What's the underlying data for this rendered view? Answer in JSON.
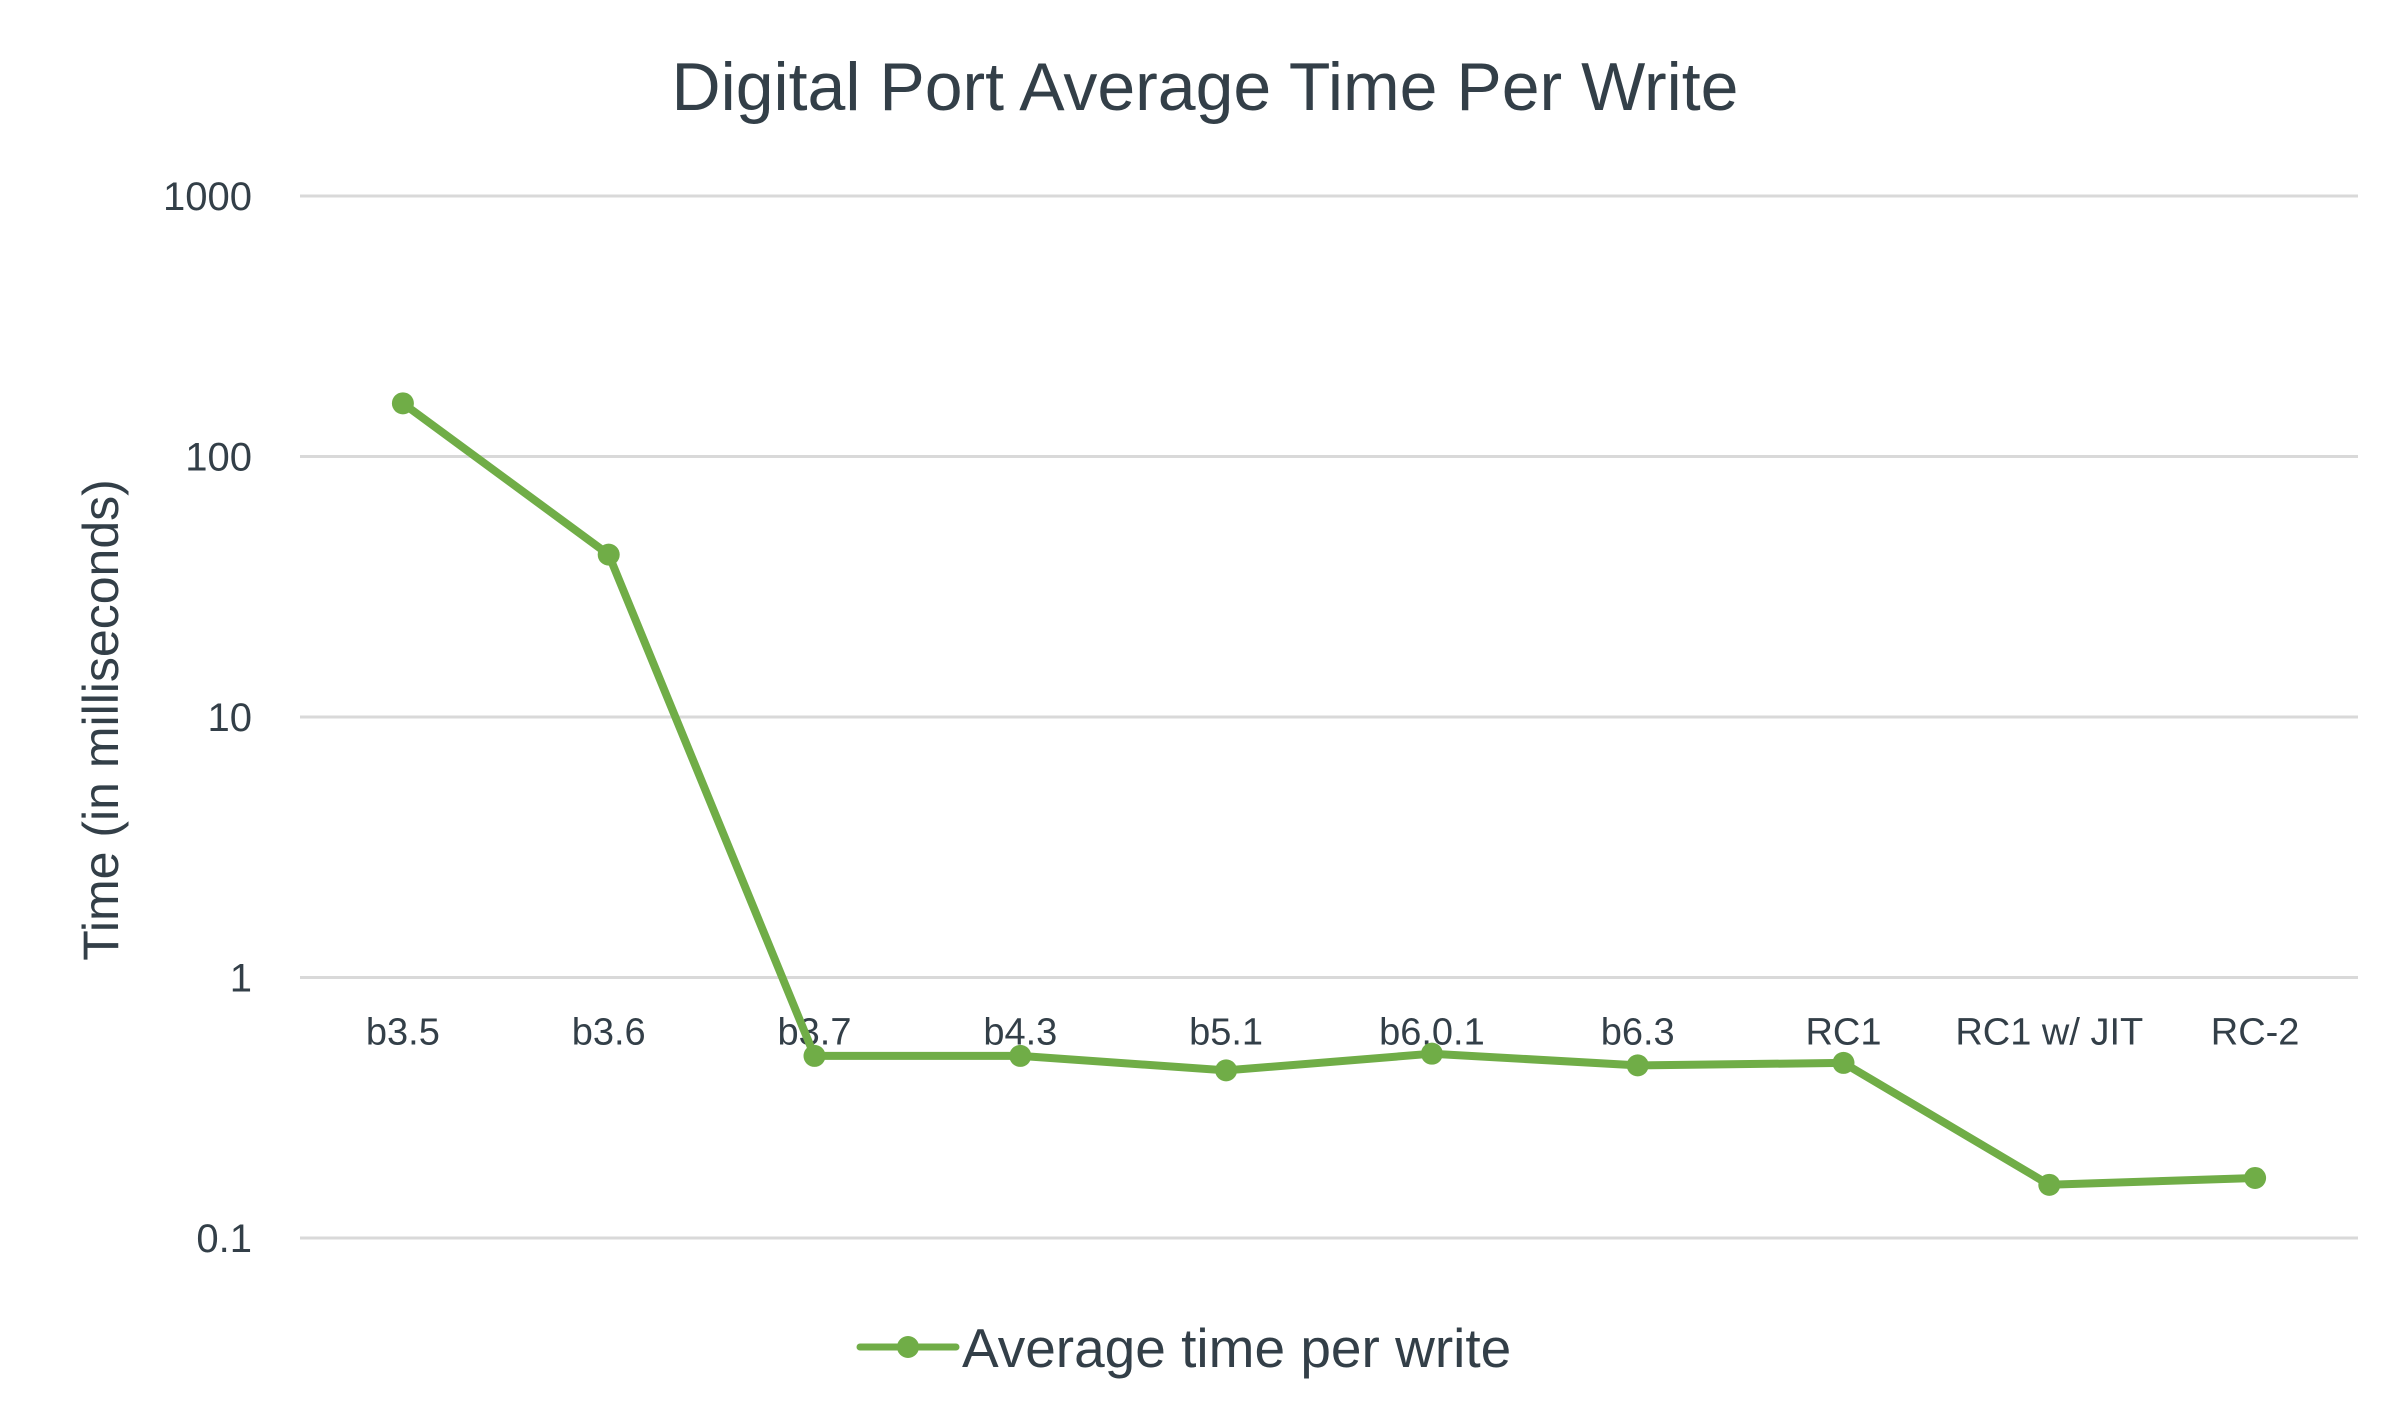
{
  "chart_data": {
    "type": "line",
    "title": "Digital Port Average Time Per Write",
    "xlabel": "",
    "ylabel": "Time (in milliseconds)",
    "yscale": "log",
    "ylim": [
      0.1,
      1000
    ],
    "yticks": [
      "1000",
      "100",
      "10",
      "1",
      "0.1"
    ],
    "grid": true,
    "legend_position": "bottom",
    "categories": [
      "b3.5",
      "b3.6",
      "b3.7",
      "b4.3",
      "b5.1",
      "b6.0.1",
      "b6.3",
      "RC1",
      "RC1 w/ JIT",
      "RC-2"
    ],
    "series": [
      {
        "name": "Average time per write",
        "color": "#70ad47",
        "values": [
          160,
          42,
          0.5,
          0.5,
          0.44,
          0.51,
          0.46,
          0.47,
          0.16,
          0.17
        ]
      }
    ]
  }
}
